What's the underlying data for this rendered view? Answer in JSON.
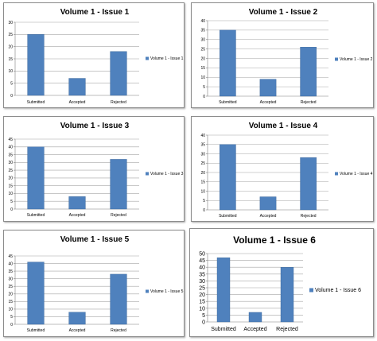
{
  "chart_data": [
    {
      "type": "bar",
      "title": "Volume 1 - Issue 1",
      "categories": [
        "Submitted",
        "Accepted",
        "Rejected"
      ],
      "series": [
        {
          "name": "Volume 1 - Issue 1",
          "values": [
            25,
            7,
            18
          ]
        }
      ],
      "ylim": [
        0,
        30
      ],
      "ytick_step": 5,
      "grid": true,
      "legend": "right",
      "bar_color": "#4f81bd"
    },
    {
      "type": "bar",
      "title": "Volume 1 - Issue 2",
      "categories": [
        "Submitted",
        "Accepted",
        "Rejected"
      ],
      "series": [
        {
          "name": "Volume 1 - Issue 2",
          "values": [
            35,
            9,
            26
          ]
        }
      ],
      "ylim": [
        0,
        40
      ],
      "ytick_step": 5,
      "grid": true,
      "legend": "right",
      "bar_color": "#4f81bd"
    },
    {
      "type": "bar",
      "title": "Volume 1 - Issue 3",
      "categories": [
        "Submitted",
        "Accepted",
        "Rejected"
      ],
      "series": [
        {
          "name": "Volume 1 - Issue 3",
          "values": [
            40,
            8,
            32
          ]
        }
      ],
      "ylim": [
        0,
        45
      ],
      "ytick_step": 5,
      "grid": true,
      "legend": "right",
      "bar_color": "#4f81bd"
    },
    {
      "type": "bar",
      "title": "Volume 1 - Issue 4",
      "categories": [
        "Submitted",
        "Accepted",
        "Rejected"
      ],
      "series": [
        {
          "name": "Volume 1 - Issue 4",
          "values": [
            35,
            7,
            28
          ]
        }
      ],
      "ylim": [
        0,
        40
      ],
      "ytick_step": 5,
      "grid": true,
      "legend": "right",
      "bar_color": "#4f81bd"
    },
    {
      "type": "bar",
      "title": "Volume 1 - Issue 5",
      "categories": [
        "Submitted",
        "Accepted",
        "Rejected"
      ],
      "series": [
        {
          "name": "Volume 1 - Issue 5",
          "values": [
            41,
            8,
            33
          ]
        }
      ],
      "ylim": [
        0,
        45
      ],
      "ytick_step": 5,
      "grid": true,
      "legend": "right",
      "bar_color": "#4f81bd"
    },
    {
      "type": "bar",
      "title": "Volume 1 - Issue 6",
      "categories": [
        "Submitted",
        "Accepted",
        "Rejected"
      ],
      "series": [
        {
          "name": "Volume 1 - Issue 6",
          "values": [
            47,
            7,
            40
          ]
        }
      ],
      "ylim": [
        0,
        50
      ],
      "ytick_step": 5,
      "grid": true,
      "legend": "right",
      "bar_color": "#4f81bd"
    }
  ]
}
